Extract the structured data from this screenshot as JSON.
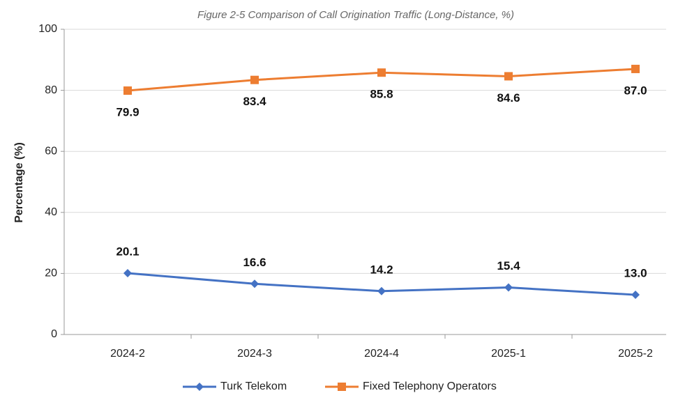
{
  "chart_data": {
    "type": "line",
    "title": "Figure 2-5 Comparison of Call Origination Traffic (Long-Distance, %)",
    "y_label": "Percentage (%)",
    "categories": [
      "2024-2",
      "2024-3",
      "2024-4",
      "2025-1",
      "2025-2"
    ],
    "series": [
      {
        "name": "Turk Telekom",
        "color": "#4472c4",
        "marker": "diamond",
        "values": [
          20.1,
          16.6,
          14.2,
          15.4,
          13.0
        ],
        "value_labels": [
          "20.1",
          "16.6",
          "14.2",
          "15.4",
          "13.0"
        ]
      },
      {
        "name": "Fixed Telephony Operators",
        "color": "#ed7d31",
        "marker": "square",
        "values": [
          79.9,
          83.4,
          85.8,
          84.6,
          87.0
        ],
        "value_labels": [
          "79.9",
          "83.4",
          "85.8",
          "84.6",
          "87.0"
        ]
      }
    ],
    "ylim": [
      0,
      100
    ],
    "yticks": [
      0,
      20,
      40,
      60,
      80,
      100
    ],
    "grid": true,
    "legend": "bottom"
  }
}
